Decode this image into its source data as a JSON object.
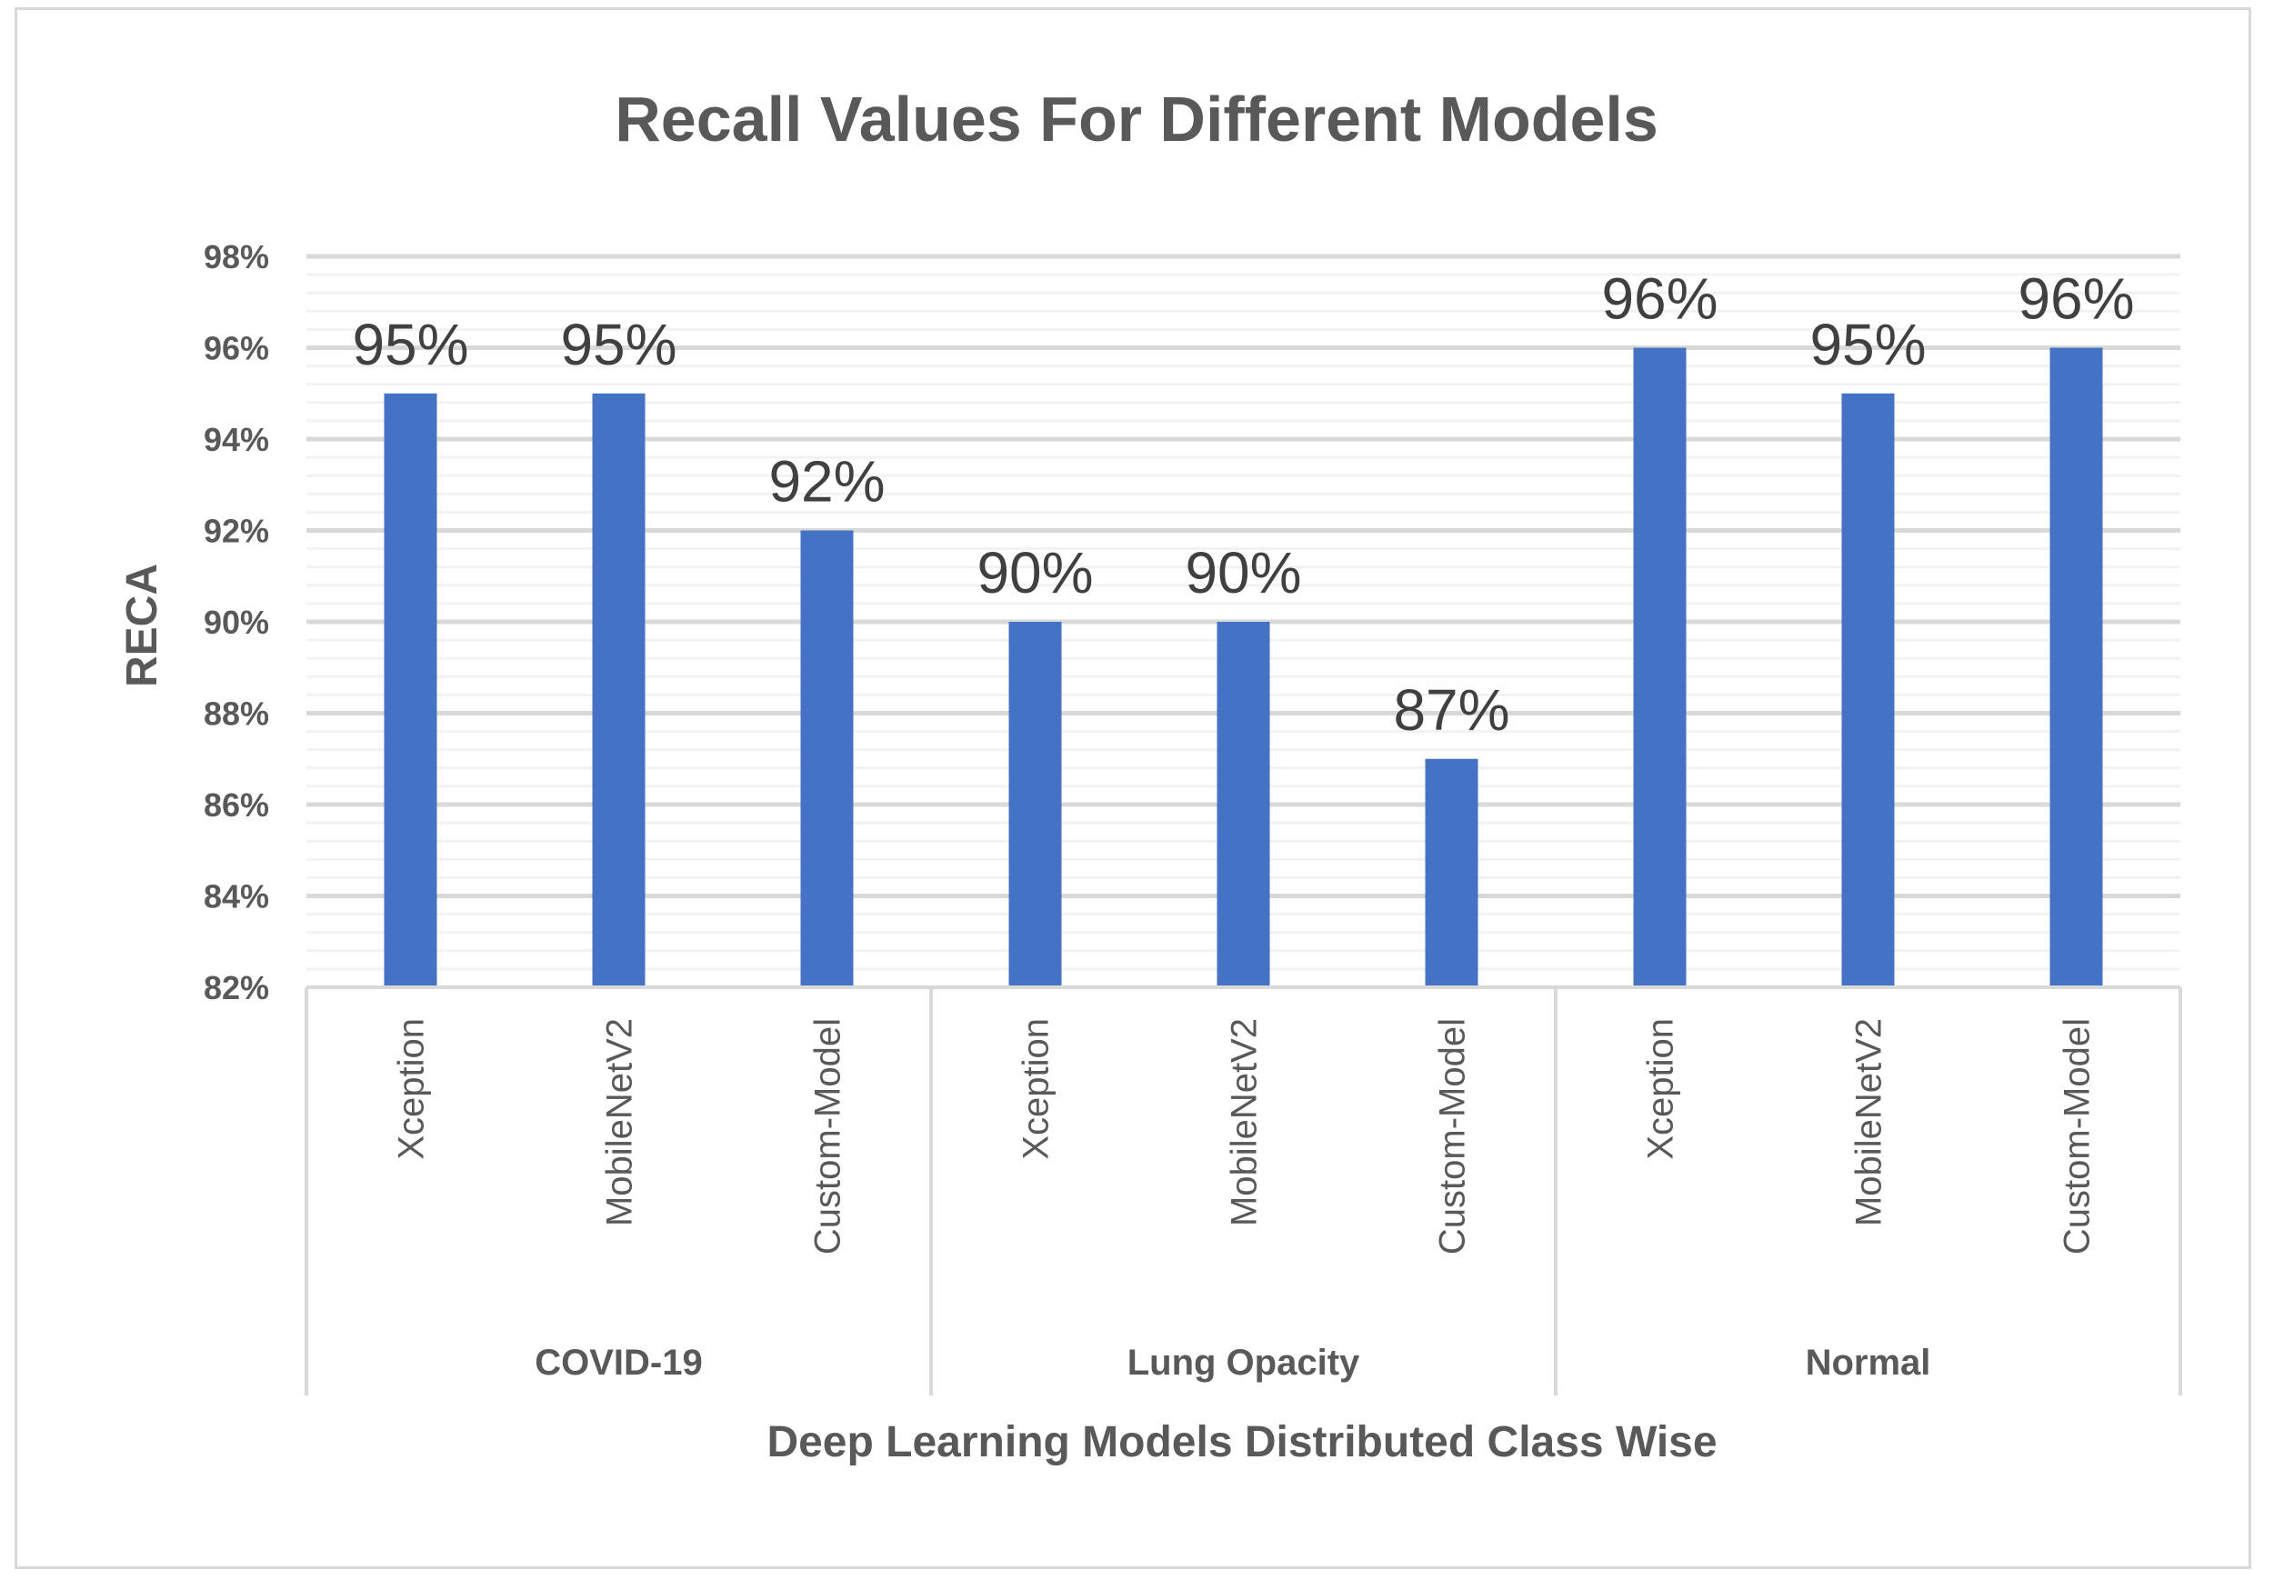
{
  "chart_data": {
    "type": "bar",
    "title": "Recall Values For Different Models",
    "xlabel": "Deep Learning Models Distributed Class Wise",
    "ylabel": "RECA",
    "ylim": [
      82,
      98
    ],
    "yticks": [
      "82%",
      "84%",
      "86%",
      "88%",
      "90%",
      "92%",
      "94%",
      "96%",
      "98%"
    ],
    "grid": true,
    "bar_color": "#4472c4",
    "groups": [
      {
        "name": "COVID-19",
        "categories": [
          "Xception",
          "MobileNetV2",
          "Custom-Model"
        ],
        "values": [
          95,
          95,
          92
        ],
        "labels": [
          "95%",
          "95%",
          "92%"
        ]
      },
      {
        "name": "Lung Opacity",
        "categories": [
          "Xception",
          "MobileNetV2",
          "Custom-Model"
        ],
        "values": [
          90,
          90,
          87
        ],
        "labels": [
          "90%",
          "90%",
          "87%"
        ]
      },
      {
        "name": "Normal",
        "categories": [
          "Xception",
          "MobileNetV2",
          "Custom-Model"
        ],
        "values": [
          96,
          95,
          96
        ],
        "labels": [
          "96%",
          "95%",
          "96%"
        ]
      }
    ]
  }
}
